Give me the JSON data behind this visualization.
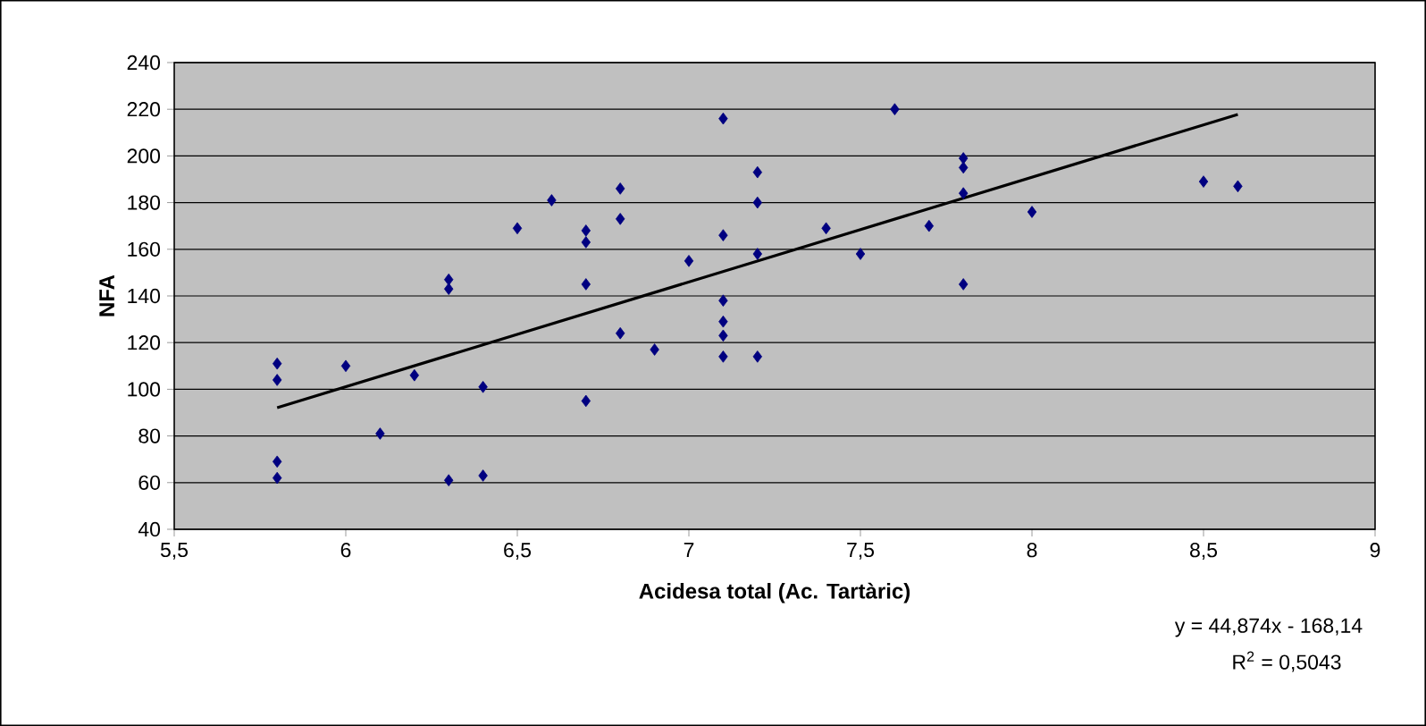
{
  "chart_data": {
    "type": "scatter",
    "xlabel": "Acidesa total (Ac. Tartàric)",
    "ylabel": "NFA",
    "xlim": [
      5.5,
      9
    ],
    "ylim": [
      40,
      240
    ],
    "xticks": [
      {
        "value": 5.5,
        "label": "5,5"
      },
      6,
      {
        "value": 6.5,
        "label": "6,5"
      },
      7,
      {
        "value": 7.5,
        "label": "7,5"
      },
      8,
      {
        "value": 8.5,
        "label": "8,5"
      },
      9
    ],
    "yticks": [
      40,
      60,
      80,
      100,
      120,
      140,
      160,
      180,
      200,
      220,
      240
    ],
    "grid": "y",
    "series": [
      {
        "marker": "diamond",
        "color": "#000080",
        "x": [
          5.8,
          5.8,
          5.8,
          5.8,
          6.0,
          6.1,
          6.2,
          6.3,
          6.3,
          6.3,
          6.4,
          6.4,
          6.5,
          6.6,
          6.7,
          6.7,
          6.7,
          6.7,
          6.8,
          6.8,
          6.8,
          6.9,
          7.0,
          7.1,
          7.1,
          7.1,
          7.1,
          7.1,
          7.1,
          7.2,
          7.2,
          7.2,
          7.2,
          7.4,
          7.5,
          7.6,
          7.7,
          7.8,
          7.8,
          7.8,
          7.8,
          8.0,
          8.5,
          8.6
        ],
        "values": [
          111,
          104,
          69,
          62,
          110,
          81,
          106,
          147,
          143,
          61,
          101,
          63,
          169,
          181,
          168,
          163,
          145,
          95,
          186,
          173,
          124,
          117,
          155,
          216,
          166,
          138,
          129,
          123,
          114,
          193,
          180,
          158,
          114,
          169,
          158,
          220,
          170,
          199,
          195,
          184,
          145,
          176,
          189,
          187
        ]
      },
      {
        "type": "line",
        "marker": "none",
        "line_style": "solid",
        "color": "#000000",
        "x": [
          5.8,
          8.6
        ],
        "values": [
          92.1,
          217.8
        ]
      }
    ],
    "annotations": [
      "y = 44,874x - 168,14",
      "R$^{2}$ = 0,5043"
    ]
  }
}
